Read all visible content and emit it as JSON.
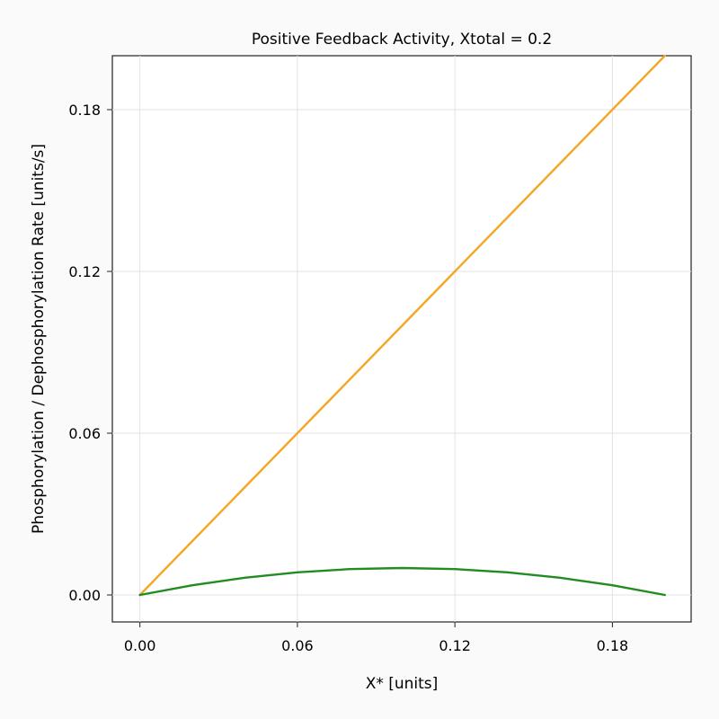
{
  "chart_data": {
    "type": "line",
    "title": "Positive Feedback Activity, Xtotal = 0.2",
    "xlabel": "X* [units]",
    "ylabel": "Phosphorylation / Dephosphorylation Rate [units/s]",
    "xlim": [
      -0.0105,
      0.21
    ],
    "ylim": [
      -0.01,
      0.2
    ],
    "x_ticks": [
      "0.00",
      "0.06",
      "0.12",
      "0.18"
    ],
    "y_ticks": [
      "0.00",
      "0.06",
      "0.12",
      "0.18"
    ],
    "grid": true,
    "legend": "none",
    "x": [
      0.0,
      0.02,
      0.04,
      0.06,
      0.08,
      0.1,
      0.12,
      0.14,
      0.16,
      0.18,
      0.2
    ],
    "series": [
      {
        "color": "#f5a623",
        "values": [
          0.0,
          0.02,
          0.04,
          0.06,
          0.08,
          0.1,
          0.12,
          0.14,
          0.16,
          0.18,
          0.2
        ]
      },
      {
        "color": "#228b22",
        "values": [
          0.0,
          0.0036,
          0.0064,
          0.0084,
          0.0096,
          0.01,
          0.0096,
          0.0084,
          0.0064,
          0.0036,
          0.0
        ]
      }
    ]
  }
}
